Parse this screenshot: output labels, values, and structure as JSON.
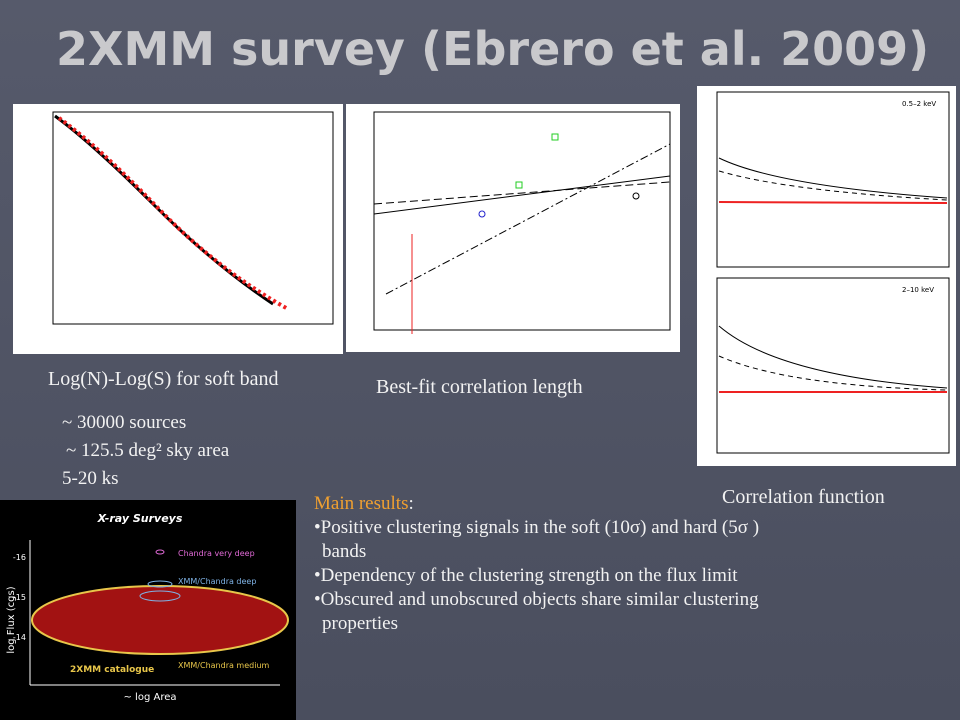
{
  "title": "2XMM survey (Ebrero et al. 2009)",
  "figures": {
    "lognlogs": {
      "caption": "Log(N)-Log(S) for soft band"
    },
    "correlation_length": {
      "caption": "Best-fit correlation length"
    },
    "correlation_function": {
      "caption": "Correlation function",
      "panels": [
        "0.5–2 keV",
        "2–10 keV"
      ]
    },
    "xray_surveys": {
      "title": "X-ray Surveys",
      "y_label": "log Flux (cgs)",
      "x_label": "~ log Area",
      "y_ticks": [
        "-16",
        "-15",
        "-14"
      ],
      "labels": [
        "Chandra very deep",
        "XMM/Chandra deep",
        "XMM/Chandra medium",
        "2XMM catalogue"
      ]
    }
  },
  "stats": [
    "~ 30000 sources",
    "~ 125.5 deg² sky area",
    "5-20 ks"
  ],
  "results": {
    "heading": "Main results",
    "items": [
      "Positive clustering signals in the soft (10σ) and hard (5σ ) bands",
      "Dependency of the clustering strength on the flux limit",
      "Obscured and unobscured objects share similar clustering properties"
    ]
  }
}
